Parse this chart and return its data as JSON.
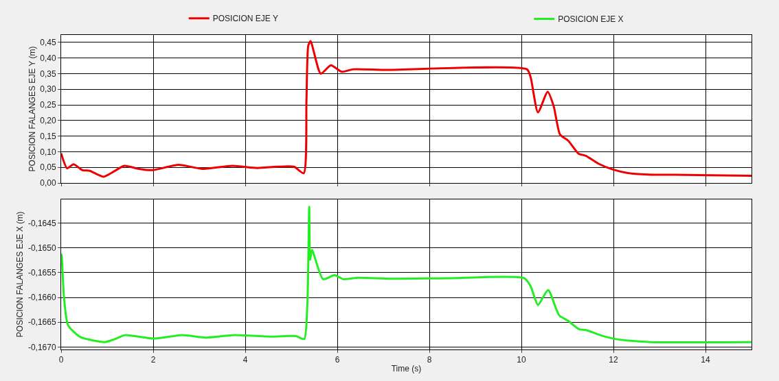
{
  "chart_data": [
    {
      "type": "line",
      "ylabel": "POSICION FALANGES EJE Y (m)",
      "legend": "top",
      "grid": true,
      "tick_labels": "y",
      "xlim": [
        0,
        15
      ],
      "xticks": [
        0,
        2,
        4,
        6,
        8,
        10,
        12,
        14
      ],
      "ylim": [
        0,
        0.474
      ],
      "yticks": [
        {
          "value": 0,
          "label": "0,00"
        },
        {
          "value": 0.05,
          "label": "0,05"
        },
        {
          "value": 0.1,
          "label": "0,10"
        },
        {
          "value": 0.15,
          "label": "0,15"
        },
        {
          "value": 0.2,
          "label": "0,20"
        },
        {
          "value": 0.25,
          "label": "0,25"
        },
        {
          "value": 0.3,
          "label": "0,30"
        },
        {
          "value": 0.35,
          "label": "0,35"
        },
        {
          "value": 0.4,
          "label": "0,40"
        },
        {
          "value": 0.45,
          "label": "0,45"
        }
      ],
      "series": [
        {
          "name": "POSICION EJE Y",
          "color": "#ee0000",
          "x": [
            0,
            0.13,
            0.27,
            0.46,
            0.62,
            0.92,
            1.16,
            1.37,
            1.69,
            1.98,
            2.55,
            3.08,
            3.72,
            4.26,
            4.68,
            5.06,
            5.27,
            5.33,
            5.37,
            5.42,
            5.64,
            5.86,
            6.1,
            6.34,
            7.07,
            10.12,
            10.2,
            10.36,
            10.57,
            10.7,
            10.84,
            11.02,
            11.24,
            11.4,
            11.67,
            11.99,
            12.31,
            12.74,
            13.6,
            15
          ],
          "values": [
            0.095,
            0.047,
            0.06,
            0.041,
            0.039,
            0.02,
            0.038,
            0.055,
            0.045,
            0.041,
            0.058,
            0.045,
            0.055,
            0.048,
            0.052,
            0.052,
            0.031,
            0.264,
            0.44,
            0.454,
            0.35,
            0.377,
            0.356,
            0.364,
            0.362,
            0.364,
            0.339,
            0.226,
            0.292,
            0.247,
            0.155,
            0.135,
            0.094,
            0.087,
            0.062,
            0.043,
            0.032,
            0.027,
            0.026,
            0.023
          ]
        }
      ]
    },
    {
      "type": "line",
      "xlabel": "Time (s)",
      "ylabel": "POSICION FALANGES EJE X (m)",
      "legend": "top",
      "grid": true,
      "xlim": [
        0,
        15
      ],
      "xticks": [
        0,
        2,
        4,
        6,
        8,
        10,
        12,
        14
      ],
      "ylim": [
        -0.16705,
        -0.16402
      ],
      "yticks": [
        {
          "value": -0.167,
          "label": "-0,1670"
        },
        {
          "value": -0.1665,
          "label": "-0,1665"
        },
        {
          "value": -0.166,
          "label": "-0,1660"
        },
        {
          "value": -0.1655,
          "label": "-0,1655"
        },
        {
          "value": -0.165,
          "label": "-0,1650"
        },
        {
          "value": -0.1645,
          "label": "-0,1645"
        }
      ],
      "series": [
        {
          "name": "POSICION EJE X",
          "color": "#22ee22",
          "x": [
            0,
            0.01,
            0.06,
            0.15,
            0.42,
            0.95,
            1.17,
            1.39,
            2,
            2.63,
            3.16,
            3.76,
            4.57,
            5.1,
            5.28,
            5.35,
            5.39,
            5.41,
            5.45,
            5.69,
            5.94,
            6.13,
            6.45,
            7.14,
            8.45,
            10.06,
            10.2,
            10.36,
            10.58,
            10.82,
            11.03,
            11.25,
            11.41,
            11.68,
            12,
            12.32,
            12.81,
            15
          ],
          "values": [
            -0.1652,
            -0.16513,
            -0.16597,
            -0.16656,
            -0.1668,
            -0.1669,
            -0.16684,
            -0.16676,
            -0.16683,
            -0.16676,
            -0.16681,
            -0.16676,
            -0.16679,
            -0.16678,
            -0.16684,
            -0.16612,
            -0.16417,
            -0.16524,
            -0.16504,
            -0.16563,
            -0.16555,
            -0.16563,
            -0.1656,
            -0.16562,
            -0.16561,
            -0.16561,
            -0.16577,
            -0.16615,
            -0.16585,
            -0.16636,
            -0.16648,
            -0.16664,
            -0.16666,
            -0.16675,
            -0.16683,
            -0.16687,
            -0.1669,
            -0.1669
          ]
        }
      ]
    }
  ]
}
